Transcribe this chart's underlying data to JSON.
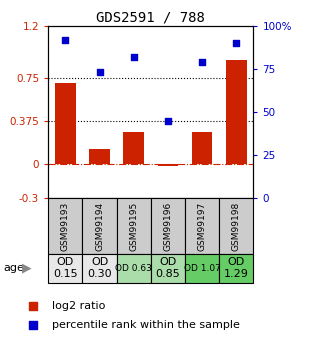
{
  "title": "GDS2591 / 788",
  "samples": [
    "GSM99193",
    "GSM99194",
    "GSM99195",
    "GSM99196",
    "GSM99197",
    "GSM99198"
  ],
  "log2_ratio": [
    0.7,
    0.13,
    0.28,
    -0.02,
    0.28,
    0.9
  ],
  "percentile_rank": [
    92,
    73,
    82,
    45,
    79,
    90
  ],
  "bar_color": "#cc2200",
  "dot_color": "#0000cc",
  "ylim_left": [
    -0.3,
    1.2
  ],
  "ylim_right": [
    0,
    100
  ],
  "yticks_left": [
    -0.3,
    0,
    0.375,
    0.75,
    1.2
  ],
  "ytick_labels_left": [
    "-0.3",
    "0",
    "0.375",
    "0.75",
    "1.2"
  ],
  "yticks_right": [
    0,
    25,
    50,
    75,
    100
  ],
  "ytick_labels_right": [
    "0",
    "25",
    "50",
    "75",
    "100%"
  ],
  "hline_75": 0.75,
  "hline_375": 0.375,
  "hline_0": 0,
  "age_labels": [
    "OD\n0.15",
    "OD\n0.30",
    "OD 0.63",
    "OD\n0.85",
    "OD 1.07",
    "OD\n1.29"
  ],
  "age_bg_colors": [
    "#e8e8e8",
    "#e8e8e8",
    "#aaddaa",
    "#aaddaa",
    "#66cc66",
    "#66cc66"
  ],
  "age_font_sizes": [
    8,
    8,
    6.5,
    8,
    6.5,
    8
  ],
  "sample_bg_color": "#cccccc",
  "legend_log2": "log2 ratio",
  "legend_pct": "percentile rank within the sample",
  "background_color": "#ffffff",
  "title_fontsize": 10
}
